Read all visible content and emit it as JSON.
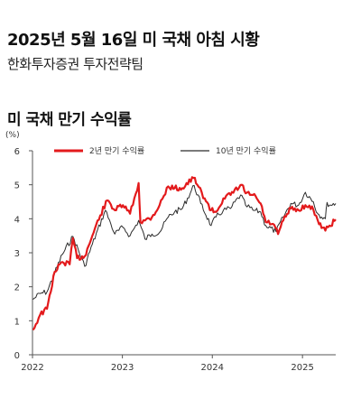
{
  "header": {
    "title": "2025년 5월 16일 미 국채 아침 시황",
    "subtitle": "한화투자증권 투자전략팀"
  },
  "colors": {
    "series_2y": "#e31a1c",
    "series_10y": "#2b2b2b",
    "axis": "#555555"
  },
  "chart_data": {
    "type": "line",
    "title": "미 국채 만기 수익률",
    "ylabel": "(%)",
    "xlabel": "",
    "ylim": [
      0,
      6
    ],
    "yticks": [
      0,
      1,
      2,
      3,
      4,
      5,
      6
    ],
    "xlim": [
      "2022-01-01",
      "2025-05-16"
    ],
    "xticks": [
      "2022",
      "2023",
      "2024",
      "2025"
    ],
    "legend_position": "top",
    "grid": false,
    "series": [
      {
        "name": "2년 만기 수익률",
        "color": "#e31a1c",
        "points": [
          [
            "2022-01-03",
            0.73
          ],
          [
            "2022-02-01",
            1.18
          ],
          [
            "2022-03-01",
            1.35
          ],
          [
            "2022-04-01",
            2.44
          ],
          [
            "2022-05-02",
            2.73
          ],
          [
            "2022-06-01",
            2.66
          ],
          [
            "2022-06-14",
            3.43
          ],
          [
            "2022-07-01",
            2.84
          ],
          [
            "2022-08-01",
            2.9
          ],
          [
            "2022-09-01",
            3.5
          ],
          [
            "2022-10-03",
            4.1
          ],
          [
            "2022-11-01",
            4.54
          ],
          [
            "2022-11-15",
            4.42
          ],
          [
            "2022-12-01",
            4.25
          ],
          [
            "2023-01-03",
            4.4
          ],
          [
            "2023-02-01",
            4.15
          ],
          [
            "2023-03-08",
            5.05
          ],
          [
            "2023-03-15",
            3.9
          ],
          [
            "2023-04-03",
            3.95
          ],
          [
            "2023-05-01",
            4.05
          ],
          [
            "2023-06-01",
            4.4
          ],
          [
            "2023-07-06",
            4.95
          ],
          [
            "2023-08-01",
            4.9
          ],
          [
            "2023-09-01",
            4.9
          ],
          [
            "2023-10-17",
            5.2
          ],
          [
            "2023-11-01",
            5.0
          ],
          [
            "2023-12-01",
            4.6
          ],
          [
            "2023-12-27",
            4.25
          ],
          [
            "2024-01-16",
            4.2
          ],
          [
            "2024-02-15",
            4.6
          ],
          [
            "2024-03-15",
            4.7
          ],
          [
            "2024-04-30",
            5.0
          ],
          [
            "2024-05-15",
            4.75
          ],
          [
            "2024-06-14",
            4.7
          ],
          [
            "2024-07-15",
            4.45
          ],
          [
            "2024-08-05",
            3.9
          ],
          [
            "2024-09-03",
            3.85
          ],
          [
            "2024-09-24",
            3.55
          ],
          [
            "2024-10-15",
            3.95
          ],
          [
            "2024-11-15",
            4.3
          ],
          [
            "2024-12-16",
            4.25
          ],
          [
            "2025-01-13",
            4.4
          ],
          [
            "2025-02-14",
            4.27
          ],
          [
            "2025-03-04",
            3.95
          ],
          [
            "2025-04-04",
            3.65
          ],
          [
            "2025-04-21",
            3.8
          ],
          [
            "2025-05-16",
            3.98
          ]
        ]
      },
      {
        "name": "10년 만기 수익률",
        "color": "#2b2b2b",
        "points": [
          [
            "2022-01-03",
            1.63
          ],
          [
            "2022-02-01",
            1.8
          ],
          [
            "2022-03-01",
            1.85
          ],
          [
            "2022-04-01",
            2.4
          ],
          [
            "2022-05-02",
            2.95
          ],
          [
            "2022-06-14",
            3.48
          ],
          [
            "2022-08-01",
            2.6
          ],
          [
            "2022-09-01",
            3.25
          ],
          [
            "2022-10-24",
            4.25
          ],
          [
            "2022-11-15",
            3.85
          ],
          [
            "2022-12-01",
            3.55
          ],
          [
            "2023-01-03",
            3.75
          ],
          [
            "2023-02-01",
            3.5
          ],
          [
            "2023-03-08",
            3.95
          ],
          [
            "2023-04-03",
            3.4
          ],
          [
            "2023-05-01",
            3.55
          ],
          [
            "2023-06-01",
            3.6
          ],
          [
            "2023-07-06",
            4.05
          ],
          [
            "2023-08-01",
            4.2
          ],
          [
            "2023-09-01",
            4.3
          ],
          [
            "2023-10-19",
            4.98
          ],
          [
            "2023-11-15",
            4.45
          ],
          [
            "2023-12-27",
            3.8
          ],
          [
            "2024-01-16",
            4.05
          ],
          [
            "2024-02-15",
            4.25
          ],
          [
            "2024-03-15",
            4.3
          ],
          [
            "2024-04-25",
            4.7
          ],
          [
            "2024-05-15",
            4.4
          ],
          [
            "2024-06-14",
            4.25
          ],
          [
            "2024-07-15",
            4.2
          ],
          [
            "2024-08-05",
            3.8
          ],
          [
            "2024-09-16",
            3.62
          ],
          [
            "2024-10-15",
            4.05
          ],
          [
            "2024-11-15",
            4.45
          ],
          [
            "2024-12-16",
            4.4
          ],
          [
            "2025-01-13",
            4.78
          ],
          [
            "2025-02-14",
            4.5
          ],
          [
            "2025-03-04",
            4.15
          ],
          [
            "2025-04-04",
            4.0
          ],
          [
            "2025-04-11",
            4.48
          ],
          [
            "2025-04-21",
            4.4
          ],
          [
            "2025-05-16",
            4.45
          ]
        ]
      }
    ]
  }
}
